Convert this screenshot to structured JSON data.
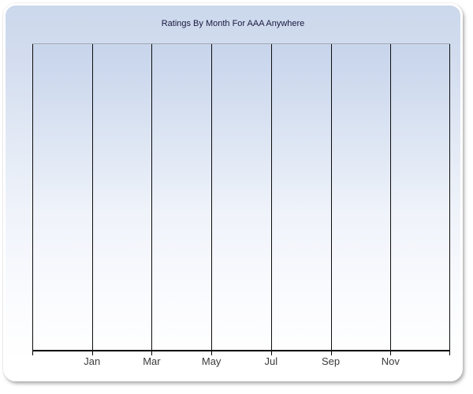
{
  "chart_data": {
    "type": "line",
    "title": "Ratings By Month For AAA Anywhere",
    "x_tick_labels": [
      "Jan",
      "Mar",
      "May",
      "Jul",
      "Sep",
      "Nov"
    ],
    "series": [],
    "data_points_visible": "none - chart plot area is empty",
    "y_axis": {
      "tick_labels": [],
      "labels_visible": false
    },
    "grid": {
      "vertical": true,
      "horizontal": false,
      "vertical_line_count": 8
    },
    "legend_position": "none"
  },
  "colors": {
    "panel_gradient_top": "#cbd8eb",
    "panel_gradient_bottom": "#ffffff",
    "panel_border": "#ffffff",
    "title_text": "#18183f",
    "gridline": "#0d0d0d",
    "axis_line": "#000000",
    "plot_top_border": "#a3a9b2",
    "tick_label_text": "#3b3b3b",
    "page_background": "#ffffff"
  }
}
